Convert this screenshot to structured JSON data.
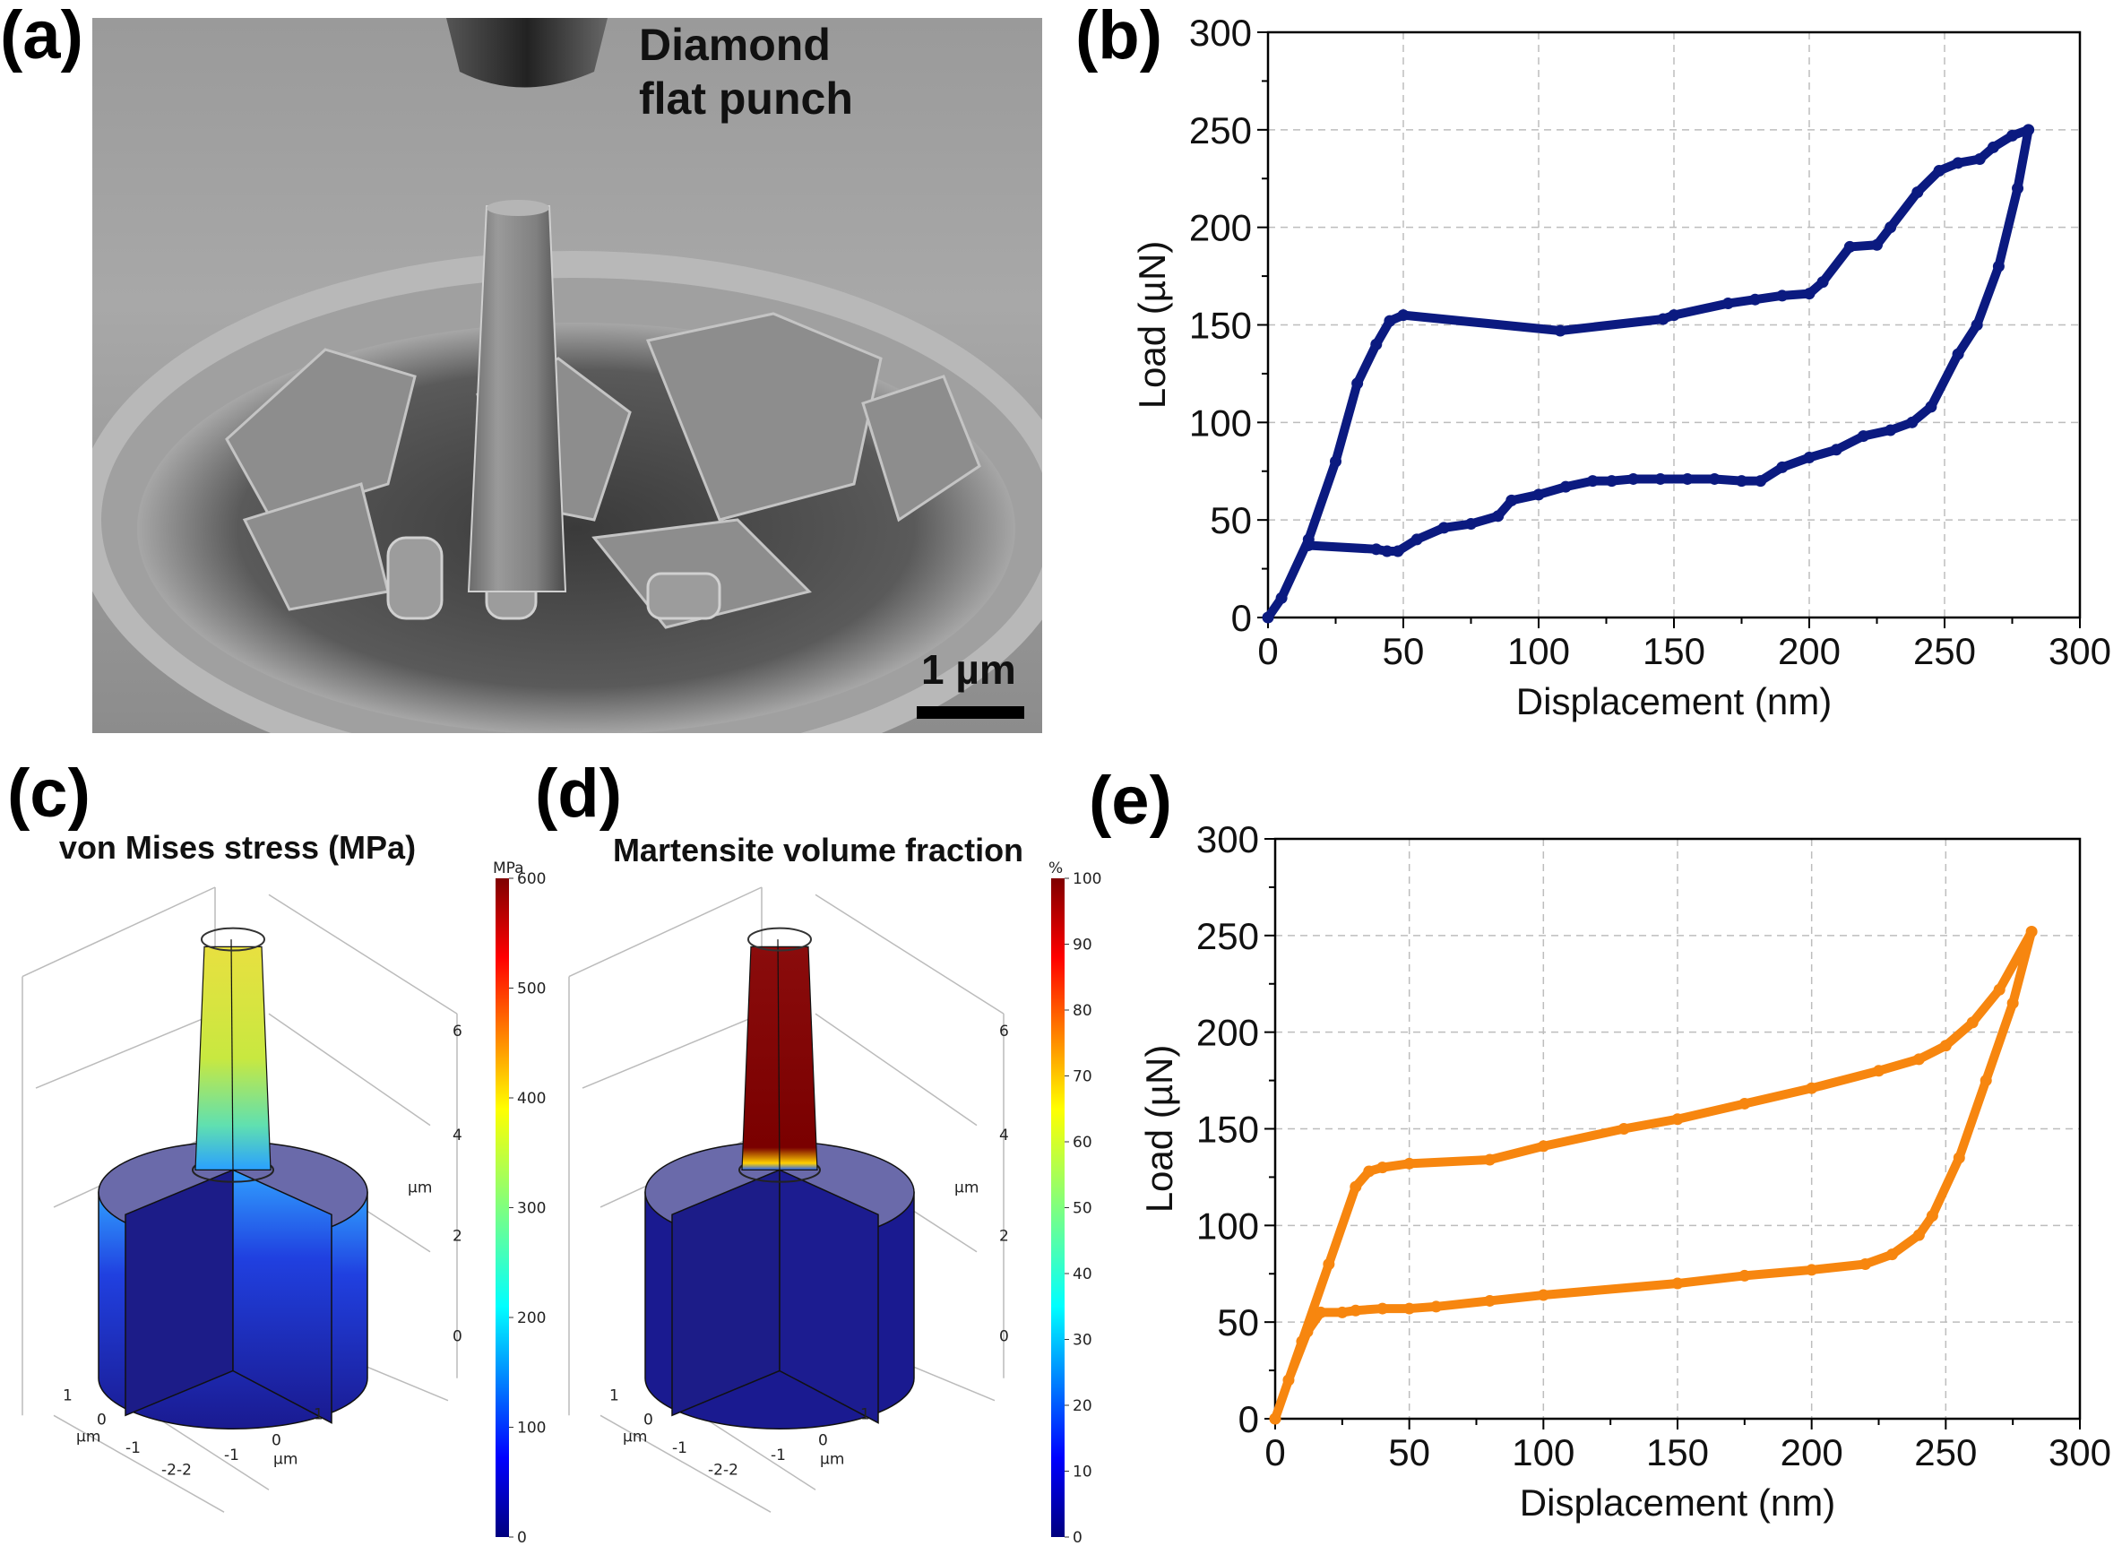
{
  "panels": {
    "a": {
      "label": "(a)",
      "annotation_line1": "Diamond",
      "annotation_line2": "flat punch",
      "scale_bar": "1 µm"
    },
    "b": {
      "label": "(b)"
    },
    "c": {
      "label": "(c)",
      "title": "von Mises stress (MPa)",
      "colorbar_unit": "MPa",
      "colorbar_ticks": [
        "0",
        "100",
        "200",
        "300",
        "400",
        "500",
        "600"
      ],
      "z_ticks": [
        "0",
        "2",
        "4",
        "6"
      ],
      "z_unit": "µm",
      "x_ticks": [
        "1",
        "0",
        "-1",
        "-2"
      ],
      "x_unit": "µm",
      "y_ticks": [
        "-2",
        "-1",
        "0",
        "1"
      ],
      "y_unit": "µm"
    },
    "d": {
      "label": "(d)",
      "title": "Martensite volume fraction",
      "colorbar_unit": "%",
      "colorbar_ticks": [
        "0",
        "10",
        "20",
        "30",
        "40",
        "50",
        "60",
        "70",
        "80",
        "90",
        "100"
      ],
      "z_ticks": [
        "0",
        "2",
        "4",
        "6"
      ],
      "z_unit": "µm",
      "x_ticks": [
        "1",
        "0",
        "-1",
        "-2"
      ],
      "x_unit": "µm",
      "y_ticks": [
        "-2",
        "-1",
        "0",
        "1"
      ],
      "y_unit": "µm"
    },
    "e": {
      "label": "(e)"
    }
  },
  "colors": {
    "series_b": "#0b1a80",
    "series_e": "#f7860f",
    "grid": "#bdbdbd",
    "colormap": "jet"
  },
  "chart_data": [
    {
      "panel": "b",
      "type": "scatter",
      "xlabel": "Displacement (nm)",
      "ylabel": "Load (µN)",
      "xlim": [
        0,
        300
      ],
      "ylim": [
        0,
        300
      ],
      "xticks": [
        0,
        50,
        100,
        150,
        200,
        250,
        300
      ],
      "yticks": [
        0,
        50,
        100,
        150,
        200,
        250,
        300
      ],
      "grid": true,
      "series": [
        {
          "x": [
            0,
            5,
            15,
            25,
            33,
            40,
            45,
            50,
            108,
            146,
            150,
            170,
            180,
            190,
            200,
            205,
            215,
            225,
            230,
            240,
            248,
            255,
            263,
            268,
            275,
            281,
            277,
            270,
            262,
            255,
            245,
            238,
            230,
            220,
            210,
            200,
            190,
            182,
            175,
            165,
            155,
            145,
            135,
            127,
            120,
            110,
            100,
            90,
            85,
            75,
            65,
            55,
            48,
            44,
            40,
            15
          ],
          "y": [
            0,
            10,
            40,
            80,
            120,
            140,
            152,
            155,
            147,
            153,
            155,
            161,
            163,
            165,
            166,
            172,
            190,
            191,
            200,
            218,
            229,
            233,
            235,
            241,
            247,
            250,
            220,
            180,
            150,
            135,
            108,
            100,
            96,
            93,
            86,
            82,
            77,
            70,
            70,
            71,
            71,
            71,
            71,
            70,
            70,
            67,
            63,
            60,
            52,
            48,
            46,
            40,
            34,
            34,
            35,
            37
          ]
        }
      ]
    },
    {
      "panel": "e",
      "type": "scatter",
      "xlabel": "Displacement (nm)",
      "ylabel": "Load (µN)",
      "xlim": [
        0,
        300
      ],
      "ylim": [
        0,
        300
      ],
      "xticks": [
        0,
        50,
        100,
        150,
        200,
        250,
        300
      ],
      "yticks": [
        0,
        50,
        100,
        150,
        200,
        250,
        300
      ],
      "grid": true,
      "series": [
        {
          "x": [
            0,
            10,
            20,
            30,
            35,
            40,
            50,
            80,
            100,
            130,
            150,
            175,
            200,
            225,
            240,
            250,
            260,
            270,
            282,
            275,
            265,
            255,
            245,
            240,
            230,
            220,
            200,
            175,
            150,
            100,
            80,
            60,
            50,
            40,
            30,
            25,
            17,
            12,
            5,
            0
          ],
          "y": [
            0,
            40,
            80,
            120,
            128,
            130,
            132,
            134,
            141,
            150,
            155,
            163,
            171,
            180,
            186,
            193,
            205,
            222,
            252,
            215,
            175,
            135,
            105,
            95,
            85,
            80,
            77,
            74,
            70,
            64,
            61,
            58,
            57,
            57,
            56,
            55,
            55,
            45,
            20,
            0
          ]
        }
      ]
    }
  ]
}
